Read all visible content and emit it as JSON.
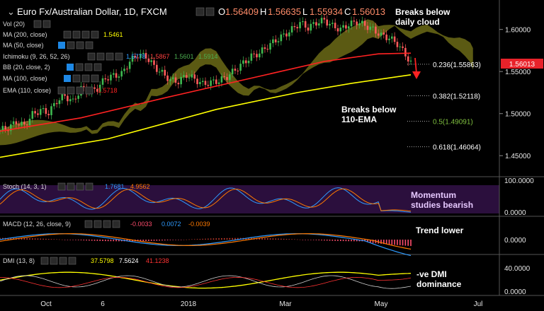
{
  "header": {
    "title": "Euro Fx/Australian Dollar, 1D, FXCM",
    "ohlc": [
      {
        "key": "O",
        "value": "1.56409"
      },
      {
        "key": "H",
        "value": "1.56635"
      },
      {
        "key": "L",
        "value": "1.55934"
      },
      {
        "key": "C",
        "value": "1.56013"
      }
    ]
  },
  "indicators": {
    "vol": {
      "label": "Vol (20)"
    },
    "ma200": {
      "label": "MA (200, close)",
      "value": "1.5461",
      "color": "#ffff00"
    },
    "ma50": {
      "label": "MA (50, close)"
    },
    "ichimoku": {
      "label": "Ichimoku (9, 26, 52, 26)",
      "values": [
        "1.5778",
        "1.5867",
        "1.5601",
        "1.5914"
      ],
      "colors": [
        "#2f9bff",
        "#ff4040",
        "#4caf50",
        "#4caf50"
      ]
    },
    "bb": {
      "label": "BB (20, close, 2)"
    },
    "ma100": {
      "label": "MA (100, close)"
    },
    "ema110": {
      "label": "EMA (110, close)",
      "value": "1.5718",
      "color": "#ff2222"
    }
  },
  "price_badge": "1.56013",
  "annotations": {
    "cloud": [
      "Breaks below",
      "daily cloud"
    ],
    "ema": [
      "Breaks below",
      "110-EMA"
    ],
    "momentum": [
      "Momentum",
      "studies bearish"
    ],
    "trend": "Trend lower",
    "dmi": [
      "-ve DMI",
      "dominance"
    ]
  },
  "fib_levels": [
    {
      "label": "0.236(1.55863)",
      "color": "#ffffff",
      "value": 1.55863
    },
    {
      "label": "0.382(1.52118)",
      "color": "#ffffff",
      "value": 1.52118
    },
    {
      "label": "0.5(1.49091)",
      "color": "#7fbf3f",
      "value": 1.49091
    },
    {
      "label": "0.618(1.46064)",
      "color": "#ffffff",
      "value": 1.46064
    }
  ],
  "panels": {
    "stoch": {
      "label": "Stoch (14, 3, 1)",
      "values": [
        "1.7681",
        "4.9562"
      ],
      "colors": [
        "#2f9bff",
        "#ff7a00"
      ],
      "ticks": [
        "100.0000",
        "0.0000"
      ]
    },
    "macd": {
      "label": "MACD (12, 26, close, 9)",
      "values": [
        "-0.0033",
        "0.0072",
        "-0.0039"
      ],
      "colors": [
        "#ff4d6d",
        "#2f9bff",
        "#ff7a00"
      ],
      "ticks": [
        "0.0000"
      ]
    },
    "dmi": {
      "label": "DMI (13, 8)",
      "values": [
        "37.5798",
        "7.5624",
        "41.1238"
      ],
      "colors": [
        "#ffff00",
        "#ffffff",
        "#ff3333"
      ],
      "ticks": [
        "40.0000",
        "0.0000"
      ]
    }
  },
  "chart_data": {
    "type": "candlestick",
    "title": "Euro Fx/Australian Dollar, 1D, FXCM",
    "price_ticks": [
      1.6,
      1.55,
      1.5,
      1.45
    ],
    "price_tick_labels": [
      "1.60000",
      "1.55000",
      "1.50000",
      "1.45000"
    ],
    "ylim": [
      1.425,
      1.635
    ],
    "x_ticks": [
      "Oct",
      "6",
      "2018",
      "Mar",
      "May",
      "Jul"
    ],
    "close_path": [
      [
        0,
        1.4805
      ],
      [
        3,
        1.483
      ],
      [
        6,
        1.49
      ],
      [
        9,
        1.4855
      ],
      [
        12,
        1.499
      ],
      [
        15,
        1.504
      ],
      [
        18,
        1.501
      ],
      [
        21,
        1.515
      ],
      [
        24,
        1.521
      ],
      [
        27,
        1.514
      ],
      [
        30,
        1.53
      ],
      [
        33,
        1.526
      ],
      [
        36,
        1.53
      ],
      [
        39,
        1.542
      ],
      [
        42,
        1.545
      ],
      [
        45,
        1.547
      ],
      [
        48,
        1.562
      ],
      [
        51,
        1.57
      ],
      [
        54,
        1.568
      ],
      [
        57,
        1.556
      ],
      [
        60,
        1.548
      ],
      [
        63,
        1.54
      ],
      [
        66,
        1.538
      ],
      [
        69,
        1.546
      ],
      [
        72,
        1.541
      ],
      [
        75,
        1.535
      ],
      [
        78,
        1.537
      ],
      [
        81,
        1.539
      ],
      [
        84,
        1.544
      ],
      [
        87,
        1.552
      ],
      [
        90,
        1.56
      ],
      [
        93,
        1.568
      ],
      [
        96,
        1.572
      ],
      [
        99,
        1.58
      ],
      [
        102,
        1.587
      ],
      [
        105,
        1.593
      ],
      [
        108,
        1.6
      ],
      [
        111,
        1.608
      ],
      [
        114,
        1.602
      ],
      [
        117,
        1.608
      ],
      [
        120,
        1.611
      ],
      [
        123,
        1.604
      ],
      [
        126,
        1.6
      ],
      [
        129,
        1.606
      ],
      [
        132,
        1.609
      ],
      [
        135,
        1.605
      ],
      [
        138,
        1.6
      ],
      [
        141,
        1.593
      ],
      [
        144,
        1.59
      ],
      [
        147,
        1.583
      ],
      [
        150,
        1.57
      ],
      [
        152,
        1.5601
      ]
    ],
    "sample_series": [
      {
        "name": "MA (200, close)",
        "color": "#ffff00",
        "values": [
          [
            0,
            1.448
          ],
          [
            40,
            1.47
          ],
          [
            80,
            1.505
          ],
          [
            110,
            1.525
          ],
          [
            130,
            1.536
          ],
          [
            152,
            1.5461
          ]
        ]
      },
      {
        "name": "EMA (110, close)",
        "color": "#ff2222",
        "values": [
          [
            0,
            1.479
          ],
          [
            30,
            1.495
          ],
          [
            60,
            1.518
          ],
          [
            90,
            1.54
          ],
          [
            120,
            1.562
          ],
          [
            140,
            1.571
          ],
          [
            152,
            1.5718
          ]
        ]
      }
    ]
  }
}
